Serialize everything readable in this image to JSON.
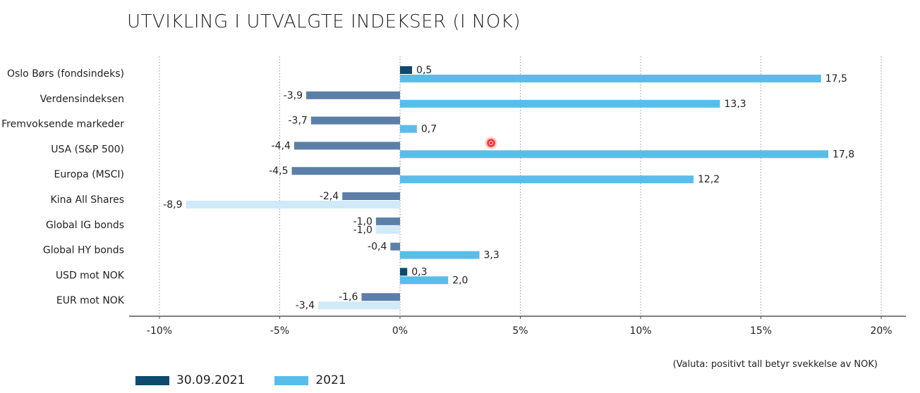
{
  "chart_data": {
    "type": "bar",
    "orientation": "horizontal",
    "title": "UTVIKLING I UTVALGTE INDEKSER (I NOK)",
    "note": "(Valuta: positivt tall betyr svekkelse av NOK)",
    "categories": [
      "Oslo Børs (fondsindeks)",
      "Verdensindeksen",
      "Fremvoksende markeder",
      "USA (S&P 500)",
      "Europa (MSCI)",
      "Kina All Shares",
      "Global IG bonds",
      "Global HY bonds",
      "USD mot NOK",
      "EUR mot NOK"
    ],
    "series": [
      {
        "name": "30.09.2021",
        "values": [
          0.5,
          -3.9,
          -3.7,
          -4.4,
          -4.5,
          -2.4,
          -1.0,
          -0.4,
          0.3,
          -1.6
        ],
        "labels": [
          "0,5",
          "-3,9",
          "-3,7",
          "-4,4",
          "-4,5",
          "-2,4",
          "-1,0",
          "-0,4",
          "0,3",
          "-1,6"
        ]
      },
      {
        "name": "2021",
        "values": [
          17.5,
          13.3,
          0.7,
          17.8,
          12.2,
          -8.9,
          -1.0,
          3.3,
          2.0,
          -3.4
        ],
        "labels": [
          "17,5",
          "13,3",
          "0,7",
          "17,8",
          "12,2",
          "-8,9",
          "-1,0",
          "3,3",
          "2,0",
          "-3,4"
        ]
      }
    ],
    "xlim": [
      -10,
      20
    ],
    "xticks": [
      -10,
      -5,
      0,
      5,
      10,
      15,
      20
    ],
    "xtick_labels": [
      "-10%",
      "-5%",
      "0%",
      "5%",
      "10%",
      "15%",
      "20%"
    ],
    "grid": "vertical dotted",
    "legend_position": "bottom-left",
    "colors": {
      "series1_positive": "#0d4a6e",
      "series1_negative": "#5b7fa8",
      "series2_positive": "#59bde9",
      "series2_negative": "#cfeaf8",
      "axis": "#555555",
      "grid": "#9a9a9a"
    }
  },
  "legend": [
    {
      "label": "30.09.2021",
      "color": "#0d4a6e"
    },
    {
      "label": "2021",
      "color": "#59bde9"
    }
  ]
}
